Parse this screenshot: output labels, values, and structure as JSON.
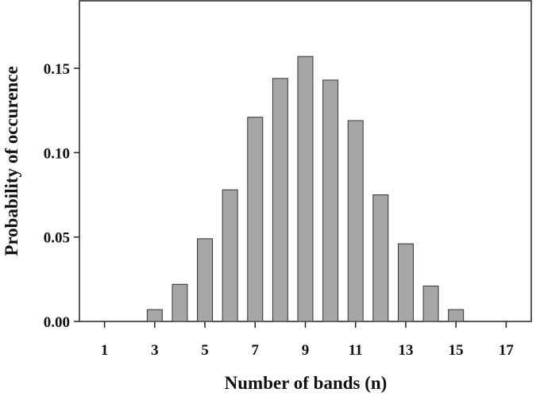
{
  "chart_data": {
    "type": "bar",
    "x": [
      3,
      4,
      5,
      6,
      7,
      8,
      9,
      10,
      11,
      12,
      13,
      14,
      15
    ],
    "values": [
      0.007,
      0.022,
      0.049,
      0.078,
      0.121,
      0.144,
      0.157,
      0.143,
      0.119,
      0.075,
      0.046,
      0.021,
      0.007
    ],
    "color": "#a6a6a6",
    "xlim": [
      0,
      18
    ],
    "xticks": [
      1,
      3,
      5,
      7,
      9,
      11,
      13,
      15,
      17
    ],
    "ylim": [
      0,
      0.19
    ],
    "yticks": [
      {
        "value": 0,
        "label": "0.00"
      },
      {
        "value": 0.05,
        "label": "0.05"
      },
      {
        "value": 0.1,
        "label": "0.10"
      },
      {
        "value": 0.15,
        "label": "0.15"
      }
    ],
    "xlabel": "Number of bands (n)",
    "ylabel": "Probability of occurence"
  }
}
